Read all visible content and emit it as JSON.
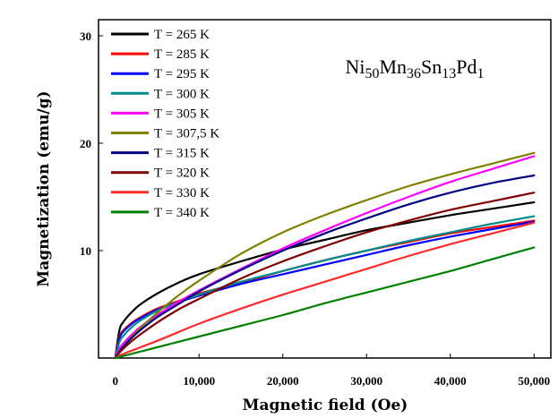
{
  "chart_data": {
    "type": "line",
    "title": "Ni50Mn36Sn13Pd1",
    "title_parts": [
      {
        "text": "Ni",
        "sub": "50"
      },
      {
        "text": "Mn",
        "sub": "36"
      },
      {
        "text": "Sn",
        "sub": "13"
      },
      {
        "text": "Pd",
        "sub": "1"
      }
    ],
    "xlabel": "Magnetic field (Oe)",
    "ylabel": "Magnetization (emu/g)",
    "xlim": [
      -2000,
      52000
    ],
    "ylim": [
      0,
      31.5
    ],
    "x_ticks": [
      0,
      10000,
      20000,
      30000,
      40000,
      50000
    ],
    "x_tick_labels": [
      "0",
      "10,000",
      "20,000",
      "30,000",
      "40,000",
      "50,000"
    ],
    "y_ticks": [
      10,
      20,
      30
    ],
    "y_tick_labels": [
      "10",
      "20",
      "30"
    ],
    "grid": false,
    "legend_position": "top-left",
    "x": [
      0,
      500,
      1000,
      2000,
      3000,
      5000,
      7500,
      10000,
      15000,
      20000,
      25000,
      30000,
      35000,
      40000,
      45000,
      50000
    ],
    "series": [
      {
        "name": "T = 265 K",
        "color": "#000000",
        "values": [
          0,
          2.6,
          3.4,
          4.3,
          5.0,
          6.0,
          7.0,
          7.8,
          9.0,
          10.1,
          11.0,
          11.9,
          12.6,
          13.3,
          13.9,
          14.5
        ]
      },
      {
        "name": "T = 285 K",
        "color": "#ff0000",
        "values": [
          0,
          2.0,
          2.6,
          3.3,
          3.8,
          4.6,
          5.3,
          6.0,
          7.0,
          8.1,
          9.1,
          10.0,
          10.8,
          11.6,
          12.2,
          12.8
        ]
      },
      {
        "name": "T = 295 K",
        "color": "#0000ff",
        "values": [
          0,
          1.8,
          2.5,
          3.2,
          3.7,
          4.5,
          5.2,
          5.8,
          6.9,
          7.8,
          8.7,
          9.6,
          10.5,
          11.3,
          12.0,
          12.7
        ]
      },
      {
        "name": "T = 300 K",
        "color": "#008b8b",
        "values": [
          0,
          1.5,
          2.1,
          2.9,
          3.5,
          4.4,
          5.2,
          5.9,
          7.1,
          8.1,
          9.1,
          10.0,
          10.9,
          11.7,
          12.5,
          13.2
        ]
      },
      {
        "name": "T = 305 K",
        "color": "#ff00ff",
        "values": [
          0,
          0.9,
          1.4,
          2.2,
          2.9,
          4.0,
          5.2,
          6.3,
          8.3,
          10.2,
          11.9,
          13.5,
          15.0,
          16.4,
          17.6,
          18.8
        ]
      },
      {
        "name": "T = 307,5 K",
        "color": "#808000",
        "values": [
          0,
          0.6,
          1.1,
          2.0,
          2.8,
          4.2,
          5.8,
          7.2,
          9.7,
          11.7,
          13.3,
          14.7,
          16.0,
          17.1,
          18.1,
          19.1
        ]
      },
      {
        "name": "T = 315 K",
        "color": "#000080",
        "values": [
          0,
          0.6,
          1.1,
          1.9,
          2.6,
          3.8,
          5.0,
          6.2,
          8.2,
          10.0,
          11.6,
          13.0,
          14.3,
          15.4,
          16.3,
          17.0
        ]
      },
      {
        "name": "T = 320 K",
        "color": "#800000",
        "values": [
          0,
          0.5,
          0.9,
          1.6,
          2.2,
          3.3,
          4.5,
          5.5,
          7.4,
          9.0,
          10.4,
          11.7,
          12.8,
          13.8,
          14.6,
          15.4
        ]
      },
      {
        "name": "T = 330 K",
        "color": "#ff2a2a",
        "values": [
          0,
          0.2,
          0.4,
          0.7,
          1.0,
          1.6,
          2.4,
          3.2,
          4.6,
          5.9,
          7.1,
          8.3,
          9.5,
          10.6,
          11.6,
          12.6
        ]
      },
      {
        "name": "T = 340 K",
        "color": "#008000",
        "values": [
          0,
          0.1,
          0.2,
          0.4,
          0.6,
          1.0,
          1.5,
          2.0,
          3.0,
          4.0,
          5.1,
          6.1,
          7.1,
          8.1,
          9.2,
          10.3
        ]
      }
    ]
  }
}
